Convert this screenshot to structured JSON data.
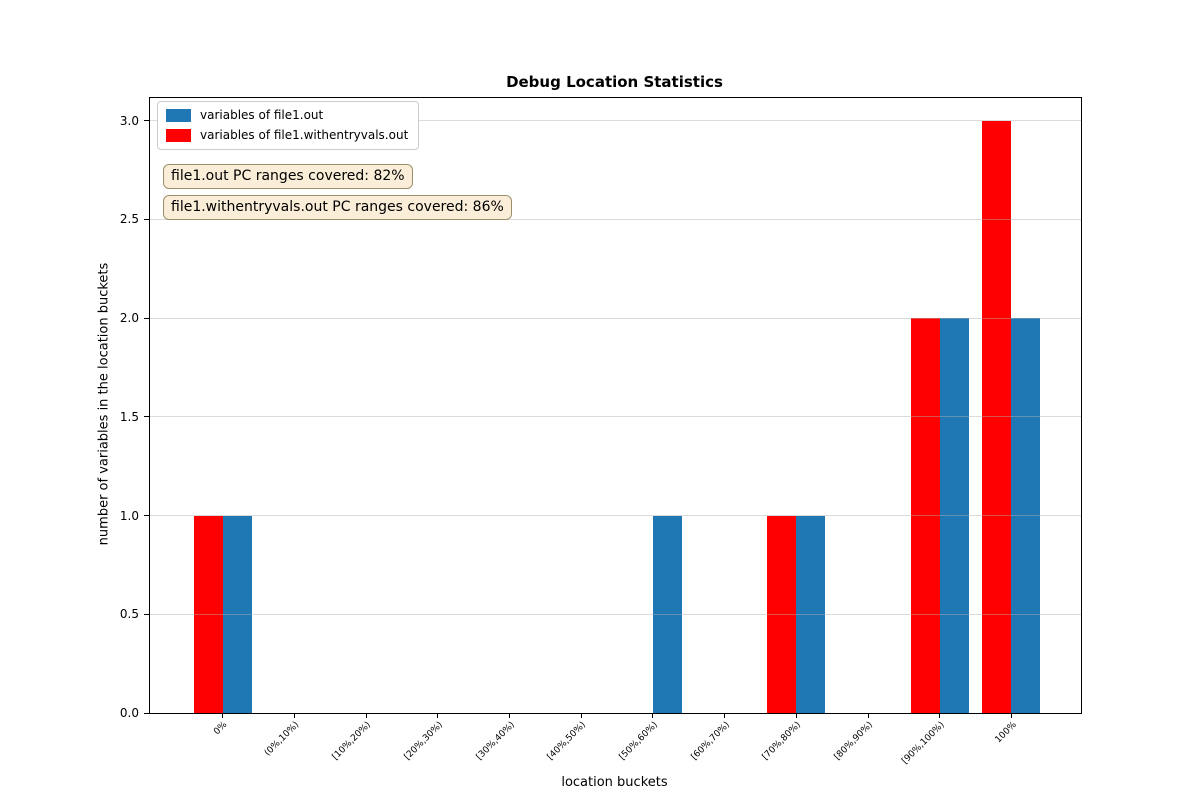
{
  "title": "Debug Location Statistics",
  "chart_data": {
    "type": "bar",
    "title": "Debug Location Statistics",
    "xlabel": "location buckets",
    "ylabel": "number of variables in the location buckets",
    "categories": [
      "0%",
      "(0%,10%)",
      "[10%,20%)",
      "[20%,30%)",
      "[30%,40%)",
      "[40%,50%)",
      "[50%,60%)",
      "[60%,70%)",
      "[70%,80%)",
      "[80%,90%)",
      "[90%,100%)",
      "100%"
    ],
    "series": [
      {
        "name": "variables of file1.out",
        "color": "#1f77b4",
        "offset": "right",
        "values": [
          1,
          0,
          0,
          0,
          0,
          0,
          1,
          0,
          1,
          0,
          2,
          2
        ]
      },
      {
        "name": "variables of file1.withentryvals.out",
        "color": "#ff0000",
        "offset": "left",
        "values": [
          1,
          0,
          0,
          0,
          0,
          0,
          0,
          0,
          1,
          0,
          2,
          3
        ]
      }
    ],
    "yticks": [
      0.0,
      0.5,
      1.0,
      1.5,
      2.0,
      2.5,
      3.0
    ],
    "ytick_labels": [
      "0.0",
      "0.5",
      "1.0",
      "1.5",
      "2.0",
      "2.5",
      "3.0"
    ],
    "ylim": [
      0,
      3.114
    ],
    "grid": "horizontal",
    "legend_position": "upper-left"
  },
  "annotations": [
    {
      "text": "file1.out PC ranges covered: 82%"
    },
    {
      "text": "file1.withentryvals.out PC ranges covered: 86%"
    }
  ],
  "colors": {
    "grid_color": "#b0b0b0",
    "legend_border": "#cccccc",
    "annotation_bg": "#faeed8",
    "annotation_border": "#9b8f6b",
    "axis_color": "#000000"
  }
}
